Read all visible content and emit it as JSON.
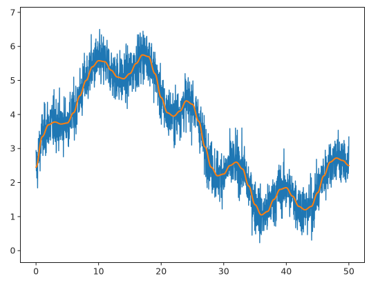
{
  "chart_data": {
    "type": "line",
    "title": "",
    "xlabel": "",
    "ylabel": "",
    "xlim": [
      -2.5,
      52.5
    ],
    "ylim": [
      -0.35,
      7.15
    ],
    "x_ticks": [
      0,
      10,
      20,
      30,
      40,
      50
    ],
    "x_tick_labels": [
      "0",
      "10",
      "20",
      "30",
      "40",
      "50"
    ],
    "y_ticks": [
      0,
      1,
      2,
      3,
      4,
      5,
      6,
      7
    ],
    "y_tick_labels": [
      "0",
      "1",
      "2",
      "3",
      "4",
      "5",
      "6",
      "7"
    ],
    "grid": false,
    "legend": "none",
    "series": [
      {
        "role": "noisy",
        "color": "#1f77b4",
        "noise_amplitude": 1.0,
        "x": [
          0,
          1,
          2,
          3,
          4,
          5,
          6,
          7,
          8,
          9,
          10,
          11,
          12,
          13,
          14,
          15,
          16,
          17,
          18,
          19,
          20,
          21,
          22,
          23,
          24,
          25,
          26,
          27,
          28,
          29,
          30,
          31,
          32,
          33,
          34,
          35,
          36,
          37,
          38,
          39,
          40,
          41,
          42,
          43,
          44,
          45,
          46,
          47,
          48,
          49,
          50
        ],
        "values": [
          2.45,
          3.35,
          3.7,
          3.78,
          3.72,
          3.75,
          4.05,
          4.55,
          5.0,
          5.4,
          5.58,
          5.55,
          5.3,
          5.1,
          5.05,
          5.2,
          5.5,
          5.75,
          5.7,
          5.2,
          4.5,
          4.05,
          3.95,
          4.1,
          4.4,
          4.3,
          3.8,
          3.05,
          2.45,
          2.2,
          2.25,
          2.5,
          2.6,
          2.4,
          1.9,
          1.35,
          1.05,
          1.15,
          1.5,
          1.8,
          1.85,
          1.6,
          1.3,
          1.2,
          1.3,
          1.7,
          2.2,
          2.6,
          2.72,
          2.65,
          2.5
        ]
      },
      {
        "role": "smooth",
        "color": "#ff7f0e",
        "x": [
          0,
          1,
          2,
          3,
          4,
          5,
          6,
          7,
          8,
          9,
          10,
          11,
          12,
          13,
          14,
          15,
          16,
          17,
          18,
          19,
          20,
          21,
          22,
          23,
          24,
          25,
          26,
          27,
          28,
          29,
          30,
          31,
          32,
          33,
          34,
          35,
          36,
          37,
          38,
          39,
          40,
          41,
          42,
          43,
          44,
          45,
          46,
          47,
          48,
          49,
          50
        ],
        "values": [
          2.45,
          3.35,
          3.7,
          3.78,
          3.72,
          3.75,
          4.05,
          4.55,
          5.0,
          5.4,
          5.58,
          5.55,
          5.3,
          5.1,
          5.05,
          5.2,
          5.5,
          5.75,
          5.7,
          5.2,
          4.5,
          4.05,
          3.95,
          4.1,
          4.4,
          4.3,
          3.8,
          3.05,
          2.45,
          2.2,
          2.25,
          2.5,
          2.6,
          2.4,
          1.9,
          1.35,
          1.05,
          1.15,
          1.5,
          1.8,
          1.85,
          1.6,
          1.3,
          1.2,
          1.3,
          1.7,
          2.2,
          2.6,
          2.72,
          2.65,
          2.5
        ]
      }
    ]
  }
}
